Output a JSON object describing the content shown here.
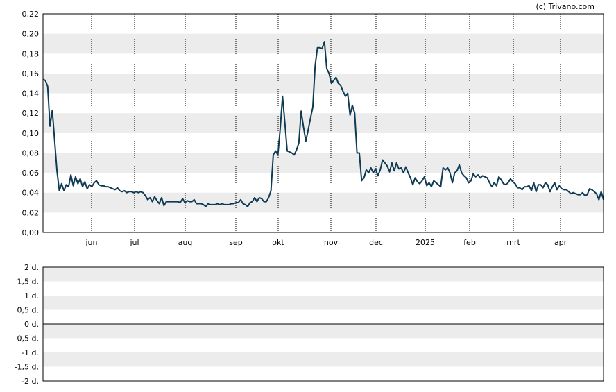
{
  "credit": "(c) Trivano.com",
  "chart_data": [
    {
      "type": "line",
      "title": "",
      "xlabel": "",
      "ylabel": "",
      "ylim": [
        0,
        0.22
      ],
      "y_ticks": [
        "0,00",
        "0,02",
        "0,04",
        "0,06",
        "0,08",
        "0,10",
        "0,12",
        "0,14",
        "0,16",
        "0,18",
        "0,20",
        "0,22"
      ],
      "x_ticks": [
        "jun",
        "jul",
        "aug",
        "sep",
        "okt",
        "nov",
        "dec",
        "2025",
        "feb",
        "mrt",
        "apr"
      ],
      "grid": "alternating bands, dotted vertical lines at month starts",
      "line_color": "#0f3a53",
      "band_color": "#ececec",
      "series": [
        {
          "values": [
            0.154,
            0.153,
            0.147,
            0.107,
            0.123,
            0.092,
            0.062,
            0.042,
            0.049,
            0.042,
            0.048,
            0.046,
            0.058,
            0.047,
            0.056,
            0.049,
            0.054,
            0.046,
            0.051,
            0.044,
            0.048,
            0.046,
            0.05,
            0.052,
            0.048,
            0.047,
            0.047,
            0.046,
            0.046,
            0.045,
            0.044,
            0.043,
            0.045,
            0.042,
            0.041,
            0.042,
            0.04,
            0.041,
            0.041,
            0.04,
            0.041,
            0.04,
            0.041,
            0.04,
            0.037,
            0.033,
            0.035,
            0.031,
            0.036,
            0.032,
            0.029,
            0.035,
            0.027,
            0.031,
            0.031,
            0.031,
            0.031,
            0.031,
            0.031,
            0.03,
            0.034,
            0.03,
            0.032,
            0.031,
            0.031,
            0.033,
            0.029,
            0.029,
            0.029,
            0.028,
            0.026,
            0.029,
            0.028,
            0.028,
            0.028,
            0.029,
            0.028,
            0.029,
            0.028,
            0.028,
            0.028,
            0.029,
            0.029,
            0.03,
            0.03,
            0.033,
            0.029,
            0.028,
            0.026,
            0.03,
            0.031,
            0.035,
            0.031,
            0.035,
            0.034,
            0.031,
            0.031,
            0.035,
            0.042,
            0.078,
            0.082,
            0.078,
            0.105,
            0.137,
            0.11,
            0.082,
            0.081,
            0.08,
            0.078,
            0.083,
            0.09,
            0.122,
            0.106,
            0.092,
            0.103,
            0.115,
            0.126,
            0.168,
            0.186,
            0.186,
            0.185,
            0.192,
            0.165,
            0.16,
            0.15,
            0.153,
            0.156,
            0.15,
            0.148,
            0.142,
            0.137,
            0.14,
            0.118,
            0.128,
            0.12,
            0.08,
            0.08,
            0.052,
            0.055,
            0.063,
            0.06,
            0.065,
            0.06,
            0.064,
            0.057,
            0.063,
            0.073,
            0.07,
            0.067,
            0.061,
            0.07,
            0.062,
            0.07,
            0.064,
            0.065,
            0.06,
            0.066,
            0.06,
            0.055,
            0.048,
            0.055,
            0.051,
            0.049,
            0.052,
            0.056,
            0.047,
            0.05,
            0.046,
            0.052,
            0.05,
            0.048,
            0.046,
            0.065,
            0.063,
            0.065,
            0.06,
            0.05,
            0.06,
            0.062,
            0.068,
            0.06,
            0.057,
            0.055,
            0.05,
            0.052,
            0.059,
            0.056,
            0.058,
            0.055,
            0.057,
            0.056,
            0.055,
            0.05,
            0.046,
            0.05,
            0.047,
            0.056,
            0.053,
            0.049,
            0.048,
            0.05,
            0.054,
            0.051,
            0.049,
            0.045,
            0.045,
            0.043,
            0.046,
            0.046,
            0.047,
            0.042,
            0.05,
            0.041,
            0.048,
            0.048,
            0.045,
            0.05,
            0.048,
            0.041,
            0.046,
            0.05,
            0.043,
            0.047,
            0.044,
            0.043,
            0.043,
            0.041,
            0.039,
            0.04,
            0.039,
            0.038,
            0.038,
            0.04,
            0.037,
            0.038,
            0.044,
            0.043,
            0.041,
            0.039,
            0.033,
            0.041,
            0.033
          ]
        }
      ]
    },
    {
      "type": "line",
      "title": "",
      "xlabel": "",
      "ylabel": "",
      "ylim": [
        -2,
        2
      ],
      "y_ticks": [
        "2 d.",
        "1,5 d.",
        "1 d.",
        "0,5 d.",
        "0 d.",
        "-0,5 d.",
        "-1 d.",
        "-1,5 d.",
        "-2 d."
      ],
      "grid": "alternating bands, solid zero line",
      "series": []
    }
  ]
}
